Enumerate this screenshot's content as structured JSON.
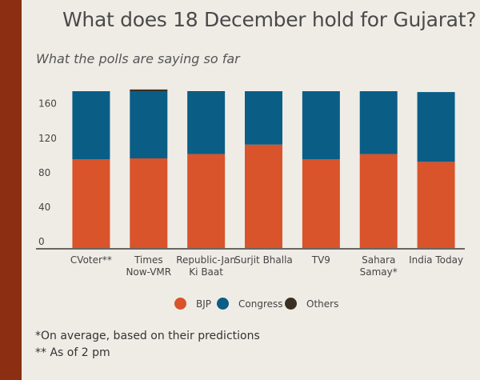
{
  "title": "What does 18 December hold for Gujarat?",
  "subtitle": "What the polls are saying so far",
  "notes": [
    "*On average, based on their predictions",
    "** As of 2 pm"
  ],
  "colors": {
    "BJP": "#d9532b",
    "Congress": "#0a5e86",
    "Others": "#3b3122"
  },
  "chart_data": {
    "type": "bar",
    "stacked": true,
    "title": "What does 18 December hold for Gujarat?",
    "subtitle": "What the polls are saying so far",
    "categories": [
      [
        "CVoter**"
      ],
      [
        "Times",
        "Now-VMR"
      ],
      [
        "Republic-Jan",
        "Ki Baat"
      ],
      [
        "Surjit Bhalla"
      ],
      [
        "TV9"
      ],
      [
        "Sahara",
        "Samay*"
      ],
      [
        "India Today"
      ]
    ],
    "series": [
      {
        "name": "BJP",
        "values": [
          103,
          104,
          109,
          120,
          103,
          109,
          100
        ]
      },
      {
        "name": "Congress",
        "values": [
          79,
          78,
          72,
          62,
          79,
          73,
          81
        ]
      },
      {
        "name": "Others",
        "values": [
          0,
          2,
          1,
          0,
          0,
          0,
          0
        ]
      }
    ],
    "yticks": [
      0,
      40,
      80,
      120,
      160
    ],
    "ylim": [
      0,
      182
    ],
    "grid": false,
    "legend": "bottom"
  }
}
